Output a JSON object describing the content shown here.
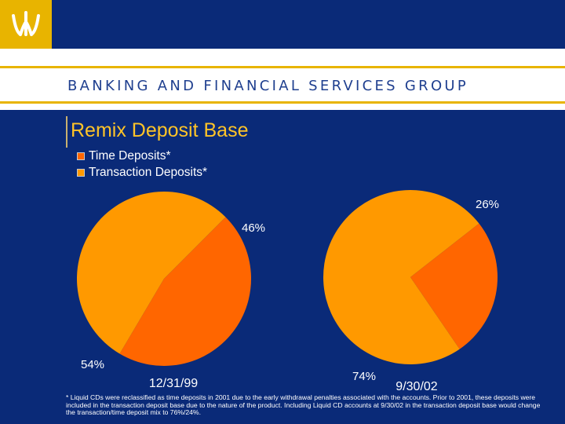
{
  "header": {
    "banner_text": "BANKING AND FINANCIAL SERVICES GROUP",
    "logo_icon": "wachovia-w-logo-icon"
  },
  "slide": {
    "title": "Remix Deposit Base",
    "footnote": "* Liquid CDs were reclassified as time deposits in 2001 due to the early withdrawal penalties associated with the accounts.  Prior to 2001, these deposits were included in the transaction deposit base due to the nature of the product.  Including Liquid CD accounts at 9/30/02 in the transaction deposit base would change the transaction/time deposit mix to 76%/24%."
  },
  "colors": {
    "time_deposits": "#ff6600",
    "transaction_deposits": "#ff9900",
    "background": "#0a2a78",
    "accent": "#e8b400"
  },
  "chart_data": [
    {
      "type": "pie",
      "title": "12/31/99",
      "legend": [
        "Time Deposits*",
        "Transaction Deposits*"
      ],
      "legend_placement": "top-left",
      "slices": [
        {
          "name": "Time Deposits*",
          "value": 46,
          "label": "46%"
        },
        {
          "name": "Transaction Deposits*",
          "value": 54,
          "label": "54%"
        }
      ]
    },
    {
      "type": "pie",
      "title": "9/30/02",
      "legend": [
        "Time Deposits*",
        "Transaction Deposits*"
      ],
      "legend_placement": "top-left",
      "slices": [
        {
          "name": "Time Deposits*",
          "value": 26,
          "label": "26%"
        },
        {
          "name": "Transaction Deposits*",
          "value": 74,
          "label": "74%"
        }
      ]
    }
  ]
}
